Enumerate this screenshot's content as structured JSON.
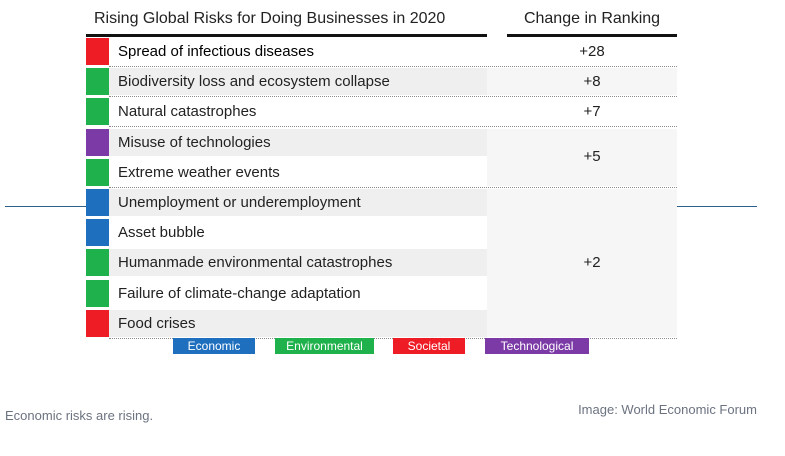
{
  "chart_data": {
    "type": "table",
    "title": "Rising Global Risks for Doing Businesses in 2020",
    "column_change": "Change in Ranking",
    "categories": {
      "economic": {
        "label": "Economic",
        "color": "#1f6fbf"
      },
      "environmental": {
        "label": "Environmental",
        "color": "#1fb14b"
      },
      "societal": {
        "label": "Societal",
        "color": "#ee1c25"
      },
      "technological": {
        "label": "Technological",
        "color": "#7b3aa6"
      }
    },
    "rows": [
      {
        "label": "Spread of infectious diseases",
        "category": "societal"
      },
      {
        "label": "Biodiversity loss and ecosystem collapse",
        "category": "environmental"
      },
      {
        "label": "Natural catastrophes",
        "category": "environmental"
      },
      {
        "label": "Misuse of technologies",
        "category": "technological"
      },
      {
        "label": "Extreme weather events",
        "category": "environmental"
      },
      {
        "label": "Unemployment or underemployment",
        "category": "economic"
      },
      {
        "label": "Asset bubble",
        "category": "economic"
      },
      {
        "label": "Humanmade environmental catastrophes",
        "category": "environmental"
      },
      {
        "label": "Failure of climate-change adaptation",
        "category": "environmental"
      },
      {
        "label": "Food crises",
        "category": "societal"
      }
    ],
    "changes": [
      {
        "value": "+28",
        "rows": [
          0
        ]
      },
      {
        "value": "+8",
        "rows": [
          1
        ]
      },
      {
        "value": "+7",
        "rows": [
          2
        ]
      },
      {
        "value": "+5",
        "rows": [
          3,
          4
        ]
      },
      {
        "value": "+2",
        "rows": [
          5,
          6,
          7,
          8,
          9
        ]
      }
    ]
  },
  "caption": "Economic risks are rising.",
  "credit": "Image: World Economic Forum"
}
